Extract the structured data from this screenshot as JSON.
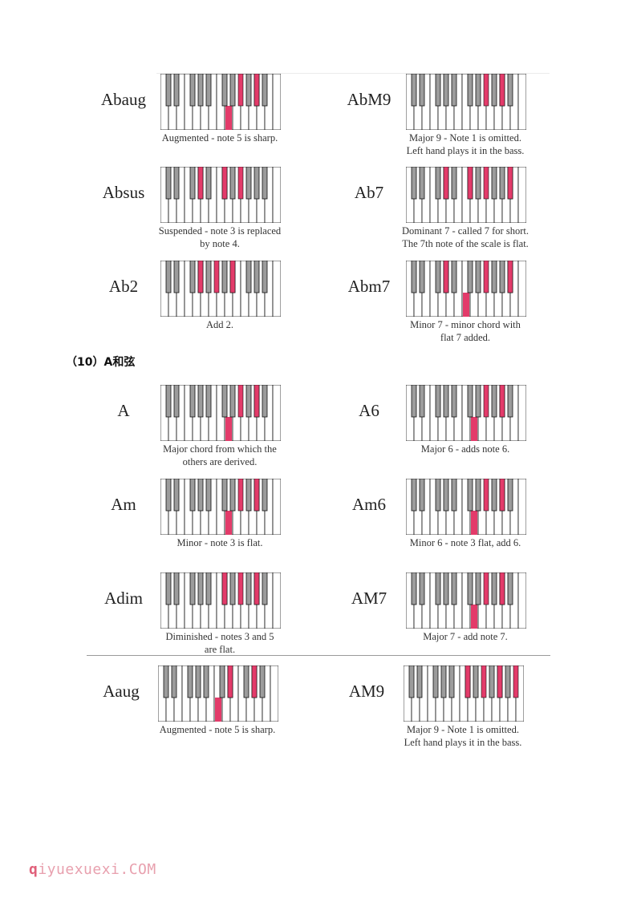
{
  "section_title": "（10）A和弦",
  "watermark": {
    "first": "q",
    "rest": "iyuexuexi.COM"
  },
  "colors": {
    "highlight": "#e33b6a",
    "black_key": "#9c9c9c",
    "white_key": "#ffffff",
    "outline": "#111111"
  },
  "chords": [
    {
      "name": "Abaug",
      "caption_lines": [
        "Augmented - note 5 is sharp."
      ],
      "white": [
        8
      ],
      "black": [
        10,
        12
      ]
    },
    {
      "name": "AbM9",
      "caption_lines": [
        "Major 9 - Note 1 is omitted.",
        "Left hand plays it in the bass."
      ],
      "white": [],
      "black": [
        10,
        12,
        15
      ]
    },
    {
      "name": "Absus",
      "caption_lines": [
        "Suspended - note 3 is replaced",
        "by note 4."
      ],
      "white": [],
      "black": [
        5,
        8,
        10
      ]
    },
    {
      "name": "Ab7",
      "caption_lines": [
        "Dominant 7 - called 7 for short.",
        "The 7th note of the scale is flat."
      ],
      "white": [],
      "black": [
        5,
        8,
        10,
        13
      ]
    },
    {
      "name": "Ab2",
      "caption_lines": [
        "Add 2."
      ],
      "white": [],
      "black": [
        5,
        7,
        9
      ]
    },
    {
      "name": "Abm7",
      "caption_lines": [
        "Minor 7 - minor chord with",
        "flat 7 added."
      ],
      "white": [
        7
      ],
      "black": [
        5,
        10,
        13
      ]
    },
    {
      "name": "A",
      "caption_lines": [
        "Major chord from which the",
        "others are derived."
      ],
      "white": [
        8
      ],
      "black": [
        10,
        12
      ]
    },
    {
      "name": "A6",
      "caption_lines": [
        "Major 6 - adds note 6."
      ],
      "white": [
        8
      ],
      "black": [
        10,
        12
      ]
    },
    {
      "name": "Am",
      "caption_lines": [
        "Minor - note 3 is flat."
      ],
      "white": [
        8
      ],
      "black": [
        10,
        12
      ]
    },
    {
      "name": "Am6",
      "caption_lines": [
        "Minor 6 - note 3 flat, add 6."
      ],
      "white": [
        8
      ],
      "black": [
        10,
        12
      ]
    },
    {
      "name": "Adim",
      "caption_lines": [
        "Diminished - notes 3 and 5",
        "are flat."
      ],
      "white": [],
      "black": [
        8,
        10,
        12
      ]
    },
    {
      "name": "AM7",
      "caption_lines": [
        "Major 7 - add note 7."
      ],
      "white": [
        8
      ],
      "black": [
        10,
        12
      ]
    },
    {
      "name": "Aaug",
      "caption_lines": [
        "Augmented - note 5 is sharp."
      ],
      "white": [
        7
      ],
      "black": [
        9,
        12
      ]
    },
    {
      "name": "AM9",
      "caption_lines": [
        "Major 9 - Note 1 is omitted.",
        "Left hand plays it in the bass."
      ],
      "white": [],
      "black": [
        8,
        10,
        12,
        14
      ]
    }
  ]
}
